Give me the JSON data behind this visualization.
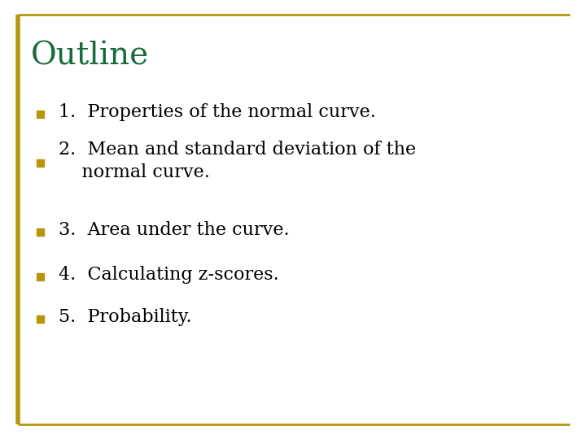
{
  "title": "Outline",
  "title_color": "#1a6b3a",
  "title_fontsize": 28,
  "background_color": "#ffffff",
  "border_color": "#b8960c",
  "bullet_color": "#b8960c",
  "text_color": "#000000",
  "bullet_items": [
    "1.  Properties of the normal curve.",
    "2.  Mean and standard deviation of the\n    normal curve.",
    "3.  Area under the curve.",
    "4.  Calculating z-scores.",
    "5.  Probability."
  ],
  "text_fontsize": 16,
  "font_family": "serif"
}
